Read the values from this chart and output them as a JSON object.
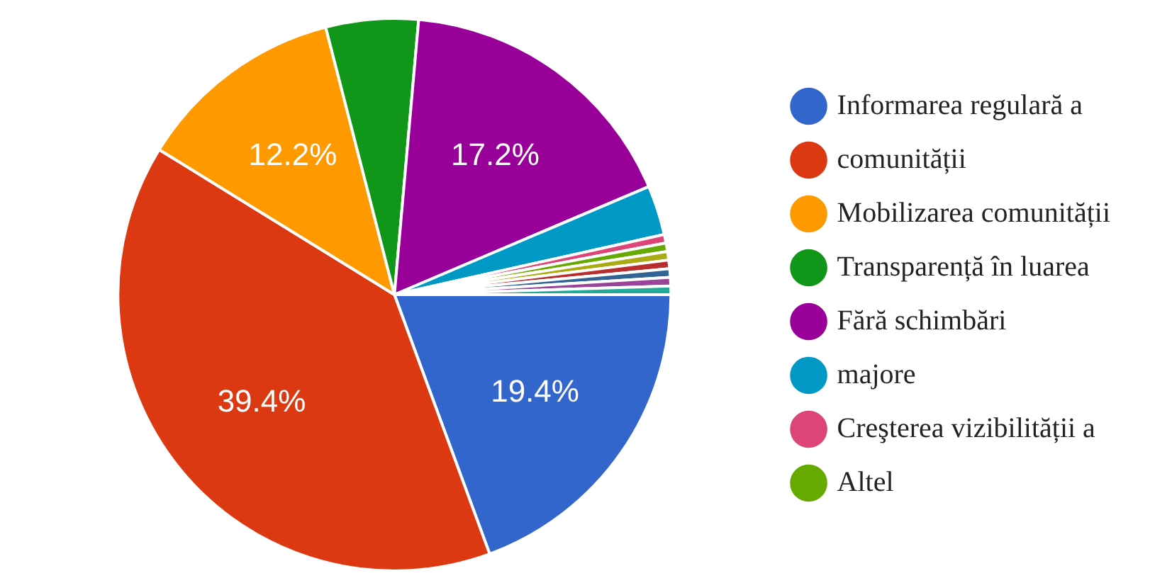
{
  "chart_data": {
    "type": "pie",
    "categories": [
      "Informarea regulară a",
      "comunității",
      "Mobilizarea comunității",
      "Transparență în luarea",
      "Fără schimbări",
      "majore",
      "Creşterea vizibilității a",
      "Altel",
      null,
      null,
      null,
      null,
      null
    ],
    "values": [
      19.4,
      39.4,
      12.2,
      5.4,
      17.2,
      2.9,
      0.5,
      0.5,
      0.5,
      0.5,
      0.5,
      0.5,
      0.5
    ],
    "colors": [
      "#3366cc",
      "#dc3912",
      "#ff9900",
      "#109618",
      "#990099",
      "#0099c6",
      "#dd4477",
      "#66aa00",
      "#aaaa11",
      "#b82e2e",
      "#316395",
      "#994499",
      "#22aa99"
    ],
    "value_labels": [
      "19.4%",
      "39.4%",
      "12.2%",
      null,
      "17.2%",
      null,
      null,
      null,
      null,
      null,
      null,
      null,
      null
    ],
    "legend": "right"
  }
}
